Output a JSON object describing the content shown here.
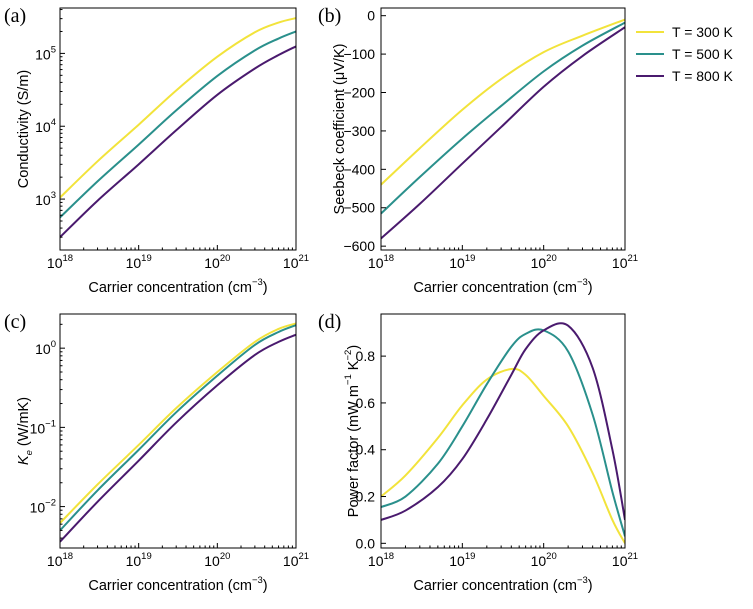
{
  "legend": {
    "placement": "upper-right",
    "entries": [
      {
        "label": "T = 300 K",
        "color": "#F2E33B"
      },
      {
        "label": "T = 500 K",
        "color": "#2A908C"
      },
      {
        "label": "T = 800 K",
        "color": "#4A1A6E"
      }
    ]
  },
  "chart_data": [
    {
      "type": "line",
      "panel_label": "(a)",
      "xlabel": "Carrier concentration (cm",
      "xlabel_sup": "−3",
      "xlabel_end": ")",
      "ylabel": "Conductivity (S/m)",
      "xscale": "log",
      "yscale": "log",
      "xlim": [
        1e+18,
        1e+21
      ],
      "ylim": [
        200,
        420000
      ],
      "x_ticks": [
        {
          "base": "10",
          "exp": "18"
        },
        {
          "base": "10",
          "exp": "19"
        },
        {
          "base": "10",
          "exp": "20"
        },
        {
          "base": "10",
          "exp": "21"
        }
      ],
      "y_ticks": [
        {
          "base": "10",
          "exp": "3"
        },
        {
          "base": "10",
          "exp": "4"
        },
        {
          "base": "10",
          "exp": "5"
        }
      ],
      "x": [
        1e+18,
        3e+18,
        1e+19,
        3e+19,
        1e+20,
        3e+20,
        6e+20,
        1e+21
      ],
      "series": [
        {
          "name": "T = 300 K",
          "values": [
            1050,
            3300,
            10500,
            31000,
            90000,
            195000,
            265000,
            305000
          ]
        },
        {
          "name": "T = 500 K",
          "values": [
            560,
            1750,
            5600,
            16500,
            49000,
            110000,
            160000,
            200000
          ]
        },
        {
          "name": "T = 800 K",
          "values": [
            300,
            950,
            3000,
            8800,
            27000,
            62000,
            95000,
            125000
          ]
        }
      ]
    },
    {
      "type": "line",
      "panel_label": "(b)",
      "xlabel": "Carrier concentration (cm",
      "xlabel_sup": "−3",
      "xlabel_end": ")",
      "ylabel": "Seebeck coefficient (μV/K)",
      "xscale": "log",
      "yscale": "linear",
      "xlim": [
        1e+18,
        1e+21
      ],
      "ylim": [
        -610,
        20
      ],
      "x_ticks": [
        {
          "base": "10",
          "exp": "18"
        },
        {
          "base": "10",
          "exp": "19"
        },
        {
          "base": "10",
          "exp": "20"
        },
        {
          "base": "10",
          "exp": "21"
        }
      ],
      "y_ticks": [
        {
          "value": 0,
          "label": "0"
        },
        {
          "value": -100,
          "label": "−100"
        },
        {
          "value": -200,
          "label": "−200"
        },
        {
          "value": -300,
          "label": "−300"
        },
        {
          "value": -400,
          "label": "−400"
        },
        {
          "value": -500,
          "label": "−500"
        },
        {
          "value": -600,
          "label": "−600"
        }
      ],
      "x": [
        1e+18,
        3e+18,
        1e+19,
        3e+19,
        1e+20,
        3e+20,
        1e+21
      ],
      "series": [
        {
          "name": "T = 300 K",
          "values": [
            -440,
            -345,
            -245,
            -165,
            -95,
            -52,
            -10
          ]
        },
        {
          "name": "T = 500 K",
          "values": [
            -515,
            -420,
            -320,
            -235,
            -145,
            -78,
            -18
          ]
        },
        {
          "name": "T = 800 K",
          "values": [
            -580,
            -490,
            -385,
            -290,
            -185,
            -105,
            -30
          ]
        }
      ]
    },
    {
      "type": "line",
      "panel_label": "(c)",
      "xlabel": "Carrier concentration (cm",
      "xlabel_sup": "−3",
      "xlabel_end": ")",
      "ylabel": "K",
      "ylabel_sub": "e",
      "ylabel_end": " (W/mK)",
      "xscale": "log",
      "yscale": "log",
      "xlim": [
        1e+18,
        1e+21
      ],
      "ylim": [
        0.003,
        2.7
      ],
      "x_ticks": [
        {
          "base": "10",
          "exp": "18"
        },
        {
          "base": "10",
          "exp": "19"
        },
        {
          "base": "10",
          "exp": "20"
        },
        {
          "base": "10",
          "exp": "21"
        }
      ],
      "y_ticks": [
        {
          "base": "10",
          "exp": "−2"
        },
        {
          "base": "10",
          "exp": "−1"
        },
        {
          "base": "10",
          "exp": "0"
        }
      ],
      "x": [
        1e+18,
        3e+18,
        1e+19,
        3e+19,
        1e+20,
        3e+20,
        6e+20,
        1e+21
      ],
      "series": [
        {
          "name": "T = 300 K",
          "values": [
            0.0062,
            0.019,
            0.06,
            0.175,
            0.5,
            1.2,
            1.75,
            2.05
          ]
        },
        {
          "name": "T = 500 K",
          "values": [
            0.005,
            0.016,
            0.052,
            0.155,
            0.45,
            1.1,
            1.6,
            1.95
          ]
        },
        {
          "name": "T = 800 K",
          "values": [
            0.0036,
            0.0115,
            0.038,
            0.115,
            0.34,
            0.82,
            1.2,
            1.48
          ]
        }
      ]
    },
    {
      "type": "line",
      "panel_label": "(d)",
      "xlabel": "Carrier concentration (cm",
      "xlabel_sup": "−3",
      "xlabel_end": ")",
      "ylabel": "Power factor (mW m",
      "ylabel_sup1": "−1",
      "ylabel_mid": " K",
      "ylabel_sup2": "−2",
      "ylabel_end": ")",
      "xscale": "log",
      "yscale": "linear",
      "xlim": [
        1e+18,
        1e+21
      ],
      "ylim": [
        -0.02,
        0.98
      ],
      "x_ticks": [
        {
          "base": "10",
          "exp": "18"
        },
        {
          "base": "10",
          "exp": "19"
        },
        {
          "base": "10",
          "exp": "20"
        },
        {
          "base": "10",
          "exp": "21"
        }
      ],
      "y_ticks": [
        {
          "value": 0.0,
          "label": "0.0"
        },
        {
          "value": 0.2,
          "label": "0.2"
        },
        {
          "value": 0.4,
          "label": "0.4"
        },
        {
          "value": 0.6,
          "label": "0.6"
        },
        {
          "value": 0.8,
          "label": "0.8"
        }
      ],
      "x": [
        1e+18,
        2e+18,
        5e+18,
        1e+19,
        2e+19,
        4e+19,
        6e+19,
        1e+20,
        2e+20,
        4e+20,
        7e+20,
        1e+21
      ],
      "series": [
        {
          "name": "T = 300 K",
          "values": [
            0.2,
            0.29,
            0.45,
            0.59,
            0.7,
            0.745,
            0.72,
            0.63,
            0.5,
            0.3,
            0.1,
            0.0
          ]
        },
        {
          "name": "T = 500 K",
          "values": [
            0.155,
            0.2,
            0.34,
            0.5,
            0.68,
            0.84,
            0.895,
            0.91,
            0.82,
            0.55,
            0.22,
            0.03
          ]
        },
        {
          "name": "T = 800 K",
          "values": [
            0.1,
            0.14,
            0.24,
            0.36,
            0.53,
            0.72,
            0.83,
            0.91,
            0.93,
            0.75,
            0.4,
            0.1
          ]
        }
      ]
    }
  ]
}
